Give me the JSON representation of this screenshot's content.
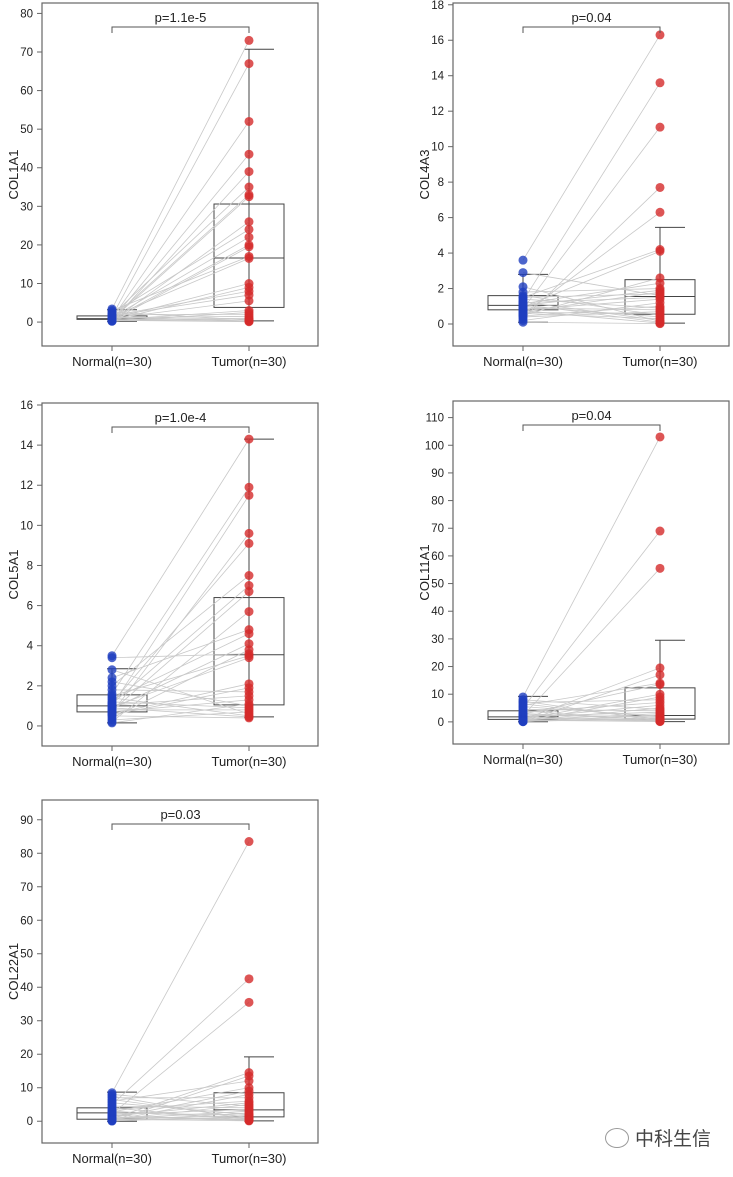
{
  "chart_data": [
    {
      "type": "box-paired",
      "ylabel": "COL1A1",
      "pvalue": "p=1.1e-5",
      "categories": [
        "Normal(n=30)",
        "Tumor(n=30)"
      ],
      "ylim": [
        -6.2,
        82.7
      ],
      "yticks": [
        0,
        10,
        20,
        30,
        40,
        50,
        60,
        70,
        80
      ],
      "box": [
        {
          "whisker_low": 0.2,
          "q1": 0.7,
          "median": 0.9,
          "q3": 1.6,
          "whisker_high": 3.2
        },
        {
          "whisker_low": 0.3,
          "q1": 3.8,
          "median": 16.6,
          "q3": 30.6,
          "whisker_high": 70.7
        }
      ],
      "normal": [
        3.4,
        3.0,
        2.6,
        2.2,
        2.0,
        1.8,
        1.6,
        1.5,
        1.4,
        1.3,
        1.2,
        1.1,
        1.0,
        0.95,
        0.9,
        0.85,
        0.8,
        0.75,
        0.7,
        0.65,
        0.6,
        0.55,
        0.5,
        0.45,
        0.4,
        0.35,
        0.3,
        0.25,
        0.2,
        1.7
      ],
      "tumor": [
        73,
        67,
        52,
        43.5,
        39,
        35,
        33,
        32.5,
        26,
        24,
        22,
        20,
        19.5,
        17,
        16.5,
        10,
        9,
        8,
        7,
        5.5,
        3,
        2.5,
        2,
        1.5,
        1,
        0.8,
        0.5,
        0.3,
        0.2,
        0.1
      ]
    },
    {
      "type": "box-paired",
      "ylabel": "COL4A3",
      "pvalue": "p=0.04",
      "categories": [
        "Normal(n=30)",
        "Tumor(n=30)"
      ],
      "ylim": [
        -1.24,
        18.1
      ],
      "yticks": [
        0,
        2,
        4,
        6,
        8,
        10,
        12,
        14,
        16,
        18
      ],
      "box": [
        {
          "whisker_low": 0.1,
          "q1": 0.8,
          "median": 1.05,
          "q3": 1.6,
          "whisker_high": 2.8
        },
        {
          "whisker_low": 0.05,
          "q1": 0.55,
          "median": 1.55,
          "q3": 2.5,
          "whisker_high": 5.45
        }
      ],
      "normal": [
        3.6,
        2.9,
        2.1,
        1.8,
        1.6,
        1.5,
        1.4,
        1.3,
        1.2,
        1.1,
        1.05,
        1.0,
        0.95,
        0.9,
        0.85,
        0.8,
        0.75,
        0.7,
        0.6,
        0.5,
        0.4,
        0.3,
        0.2,
        0.1,
        1.5,
        1.25,
        1.15,
        0.65,
        0.55,
        0.45
      ],
      "tumor": [
        16.3,
        13.6,
        11.1,
        7.7,
        6.3,
        4.2,
        4.1,
        2.6,
        2.3,
        2.0,
        1.9,
        1.8,
        1.7,
        1.6,
        1.5,
        1.4,
        1.2,
        1.0,
        0.9,
        0.8,
        0.7,
        0.6,
        0.5,
        0.4,
        0.3,
        0.2,
        0.15,
        0.1,
        0.05,
        0.02
      ]
    },
    {
      "type": "box-paired",
      "ylabel": "COL5A1",
      "pvalue": "p=1.0e-4",
      "categories": [
        "Normal(n=30)",
        "Tumor(n=30)"
      ],
      "ylim": [
        -1.0,
        16.1
      ],
      "yticks": [
        0,
        2,
        4,
        6,
        8,
        10,
        12,
        14,
        16
      ],
      "box": [
        {
          "whisker_low": 0.15,
          "q1": 0.7,
          "median": 1.0,
          "q3": 1.55,
          "whisker_high": 2.85
        },
        {
          "whisker_low": 0.45,
          "q1": 1.05,
          "median": 3.55,
          "q3": 6.4,
          "whisker_high": 14.3
        }
      ],
      "normal": [
        3.5,
        3.4,
        2.8,
        2.4,
        2.2,
        2.0,
        1.8,
        1.6,
        1.5,
        1.4,
        1.3,
        1.2,
        1.1,
        1.05,
        1.0,
        0.95,
        0.9,
        0.85,
        0.8,
        0.75,
        0.7,
        0.65,
        0.6,
        0.5,
        0.4,
        0.3,
        0.2,
        0.15,
        1.15,
        0.55
      ],
      "tumor": [
        14.3,
        11.9,
        11.5,
        9.6,
        9.1,
        7.5,
        7.0,
        6.7,
        5.7,
        4.8,
        4.6,
        4.1,
        3.8,
        3.6,
        3.5,
        3.4,
        2.1,
        1.9,
        1.7,
        1.5,
        1.3,
        1.1,
        1.0,
        0.9,
        0.8,
        0.7,
        0.6,
        0.5,
        0.45,
        0.4
      ]
    },
    {
      "type": "box-paired",
      "ylabel": "COL11A1",
      "pvalue": "p=0.04",
      "categories": [
        "Normal(n=30)",
        "Tumor(n=30)"
      ],
      "ylim": [
        -8,
        116
      ],
      "yticks": [
        0,
        10,
        20,
        30,
        40,
        50,
        60,
        70,
        80,
        90,
        100,
        110
      ],
      "box": [
        {
          "whisker_low": 0.05,
          "q1": 0.9,
          "median": 1.8,
          "q3": 4.0,
          "whisker_high": 9.2
        },
        {
          "whisker_low": 0.1,
          "q1": 1.0,
          "median": 2.3,
          "q3": 12.3,
          "whisker_high": 29.5
        }
      ],
      "normal": [
        9,
        8,
        7.5,
        7,
        6.5,
        6,
        5.5,
        5,
        4.5,
        4,
        3.5,
        3,
        2.8,
        2.5,
        2.2,
        2,
        1.8,
        1.5,
        1.2,
        1,
        0.9,
        0.8,
        0.7,
        0.6,
        0.5,
        0.4,
        0.3,
        0.2,
        0.1,
        0.05
      ],
      "tumor": [
        103,
        69,
        55.5,
        19.5,
        17,
        14,
        13.5,
        10,
        9,
        8,
        7,
        6,
        5,
        4.5,
        4,
        3.5,
        3,
        2.5,
        2,
        1.8,
        1.5,
        1.2,
        1,
        0.8,
        0.6,
        0.5,
        0.4,
        0.3,
        0.2,
        0.1
      ]
    },
    {
      "type": "box-paired",
      "ylabel": "COL22A1",
      "pvalue": "p=0.03",
      "categories": [
        "Normal(n=30)",
        "Tumor(n=30)"
      ],
      "ylim": [
        -6.5,
        95.9
      ],
      "yticks": [
        0,
        10,
        20,
        30,
        40,
        50,
        60,
        70,
        80,
        90
      ],
      "box": [
        {
          "whisker_low": 0.0,
          "q1": 0.6,
          "median": 2.5,
          "q3": 4.0,
          "whisker_high": 8.7
        },
        {
          "whisker_low": 0.1,
          "q1": 1.3,
          "median": 3.4,
          "q3": 8.5,
          "whisker_high": 19.2
        }
      ],
      "normal": [
        8.5,
        8,
        7.5,
        7,
        6.5,
        6,
        5.5,
        5,
        4.5,
        4,
        3.5,
        3,
        2.8,
        2.5,
        2.2,
        2,
        1.8,
        1.5,
        1.2,
        1,
        0.9,
        0.8,
        0.7,
        0.6,
        0.5,
        0.4,
        0.3,
        0.2,
        0.1,
        0.05
      ],
      "tumor": [
        83.5,
        42.5,
        35.5,
        14.5,
        13.5,
        12,
        10,
        9,
        8,
        7,
        6,
        5.5,
        5,
        4.5,
        4,
        3.5,
        3,
        2.5,
        2,
        1.8,
        1.5,
        1.2,
        1,
        0.8,
        0.6,
        0.5,
        0.4,
        0.3,
        0.2,
        0.1
      ]
    }
  ],
  "colors": {
    "normal": "#1f3fbf",
    "tumor": "#d42a2a",
    "pair_line": "#c8c8c8",
    "frame": "#666666"
  },
  "watermark": {
    "text": "中科生信",
    "icon": "wechat-icon"
  }
}
